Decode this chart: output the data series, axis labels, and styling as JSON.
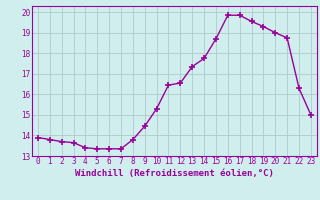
{
  "x": [
    0,
    1,
    2,
    3,
    4,
    5,
    6,
    7,
    8,
    9,
    10,
    11,
    12,
    13,
    14,
    15,
    16,
    17,
    18,
    19,
    20,
    21,
    22,
    23
  ],
  "y": [
    13.9,
    13.8,
    13.7,
    13.65,
    13.4,
    13.35,
    13.35,
    13.35,
    13.8,
    14.45,
    15.3,
    16.45,
    16.55,
    17.35,
    17.75,
    18.7,
    19.85,
    19.85,
    19.55,
    19.3,
    19.0,
    18.75,
    16.3,
    15.0
  ],
  "line_color": "#990099",
  "marker_color": "#990099",
  "bg_color": "#d0eeee",
  "grid_color": "#b0c8c8",
  "xlabel": "Windchill (Refroidissement éolien,°C)",
  "xlim": [
    -0.5,
    23.5
  ],
  "ylim": [
    13.0,
    20.3
  ],
  "yticks": [
    13,
    14,
    15,
    16,
    17,
    18,
    19,
    20
  ],
  "xticks": [
    0,
    1,
    2,
    3,
    4,
    5,
    6,
    7,
    8,
    9,
    10,
    11,
    12,
    13,
    14,
    15,
    16,
    17,
    18,
    19,
    20,
    21,
    22,
    23
  ],
  "tick_fontsize": 5.5,
  "xlabel_fontsize": 6.5,
  "line_width": 1.0,
  "marker_size": 4
}
